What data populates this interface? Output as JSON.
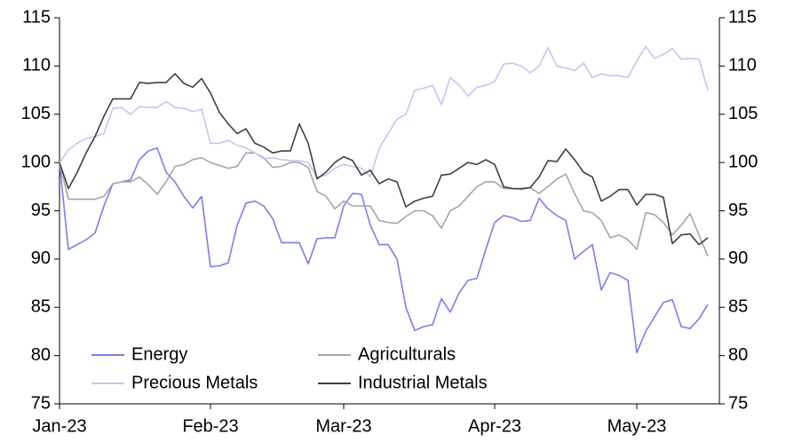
{
  "chart_data": {
    "type": "line",
    "categories": [
      "Jan-23",
      null,
      null,
      null,
      null,
      null,
      null,
      null,
      null,
      null,
      null,
      null,
      null,
      null,
      null,
      null,
      null,
      "Feb-23",
      null,
      null,
      null,
      null,
      null,
      null,
      null,
      null,
      null,
      null,
      null,
      null,
      null,
      null,
      "Mar-23",
      null,
      null,
      null,
      null,
      null,
      null,
      null,
      null,
      null,
      null,
      null,
      null,
      null,
      null,
      null,
      null,
      "Apr-23",
      null,
      null,
      null,
      null,
      null,
      null,
      null,
      null,
      null,
      null,
      null,
      null,
      null,
      null,
      null,
      "May-23",
      null,
      null,
      null,
      null,
      null,
      null,
      null,
      null
    ],
    "series": [
      {
        "name": "Energy",
        "color": "#7b7fe8",
        "values": [
          100,
          91,
          91.5,
          92,
          92.7,
          95.5,
          97.8,
          98,
          98.2,
          100.3,
          101.2,
          101.5,
          99,
          98,
          96.5,
          95.3,
          96.5,
          89.2,
          89.3,
          89.6,
          93.5,
          95.8,
          96,
          95.5,
          94.2,
          91.7,
          91.7,
          91.7,
          89.5,
          92.1,
          92.2,
          92.2,
          95.5,
          96.8,
          96.7,
          93.5,
          91.5,
          91.5,
          90,
          85,
          82.6,
          83,
          83.2,
          85.9,
          84.5,
          86.5,
          87.8,
          88,
          91,
          93.8,
          94.5,
          94.3,
          93.9,
          94,
          96.3,
          95.2,
          94.5,
          94,
          90,
          90.8,
          91.5,
          86.8,
          88.6,
          88.3,
          87.8,
          80.3,
          82.5,
          84,
          85.5,
          85.8,
          83,
          82.8,
          83.8,
          85.3
        ]
      },
      {
        "name": "Agriculturals",
        "color": "#a6a6a6",
        "values": [
          100,
          96.2,
          96.2,
          96.2,
          96.2,
          96.5,
          97.8,
          98,
          98,
          98.5,
          97.7,
          96.7,
          98,
          99.6,
          99.8,
          100.3,
          100.5,
          100,
          99.7,
          99.4,
          99.6,
          101,
          101,
          100.5,
          99.5,
          99.6,
          100,
          100,
          99.5,
          97,
          96.5,
          95.2,
          96,
          95.5,
          95.5,
          95.5,
          94,
          93.8,
          93.7,
          94.4,
          95,
          95,
          94.5,
          93.2,
          95,
          95.5,
          96.5,
          97.5,
          98,
          98,
          97.3,
          97.3,
          97.2,
          97.4,
          96.8,
          97.5,
          98.3,
          98.8,
          96.8,
          95,
          94.8,
          94,
          92.2,
          92.5,
          92,
          91,
          94.8,
          94.6,
          93.8,
          92.5,
          93.5,
          94.7,
          92.5,
          90.3
        ]
      },
      {
        "name": "Precious Metals",
        "color": "#c5c5f2",
        "values": [
          100,
          101.3,
          102,
          102.5,
          102.7,
          103,
          105.6,
          105.7,
          105,
          105.8,
          105.7,
          105.7,
          106.3,
          105.7,
          105.6,
          105.3,
          105.5,
          102,
          102,
          102.3,
          101.8,
          101.5,
          101,
          100.4,
          100.5,
          100.3,
          100.2,
          100.2,
          100,
          98.5,
          98.7,
          99.4,
          99.8,
          99.6,
          99.4,
          98.5,
          101.5,
          103,
          104.5,
          105,
          107.5,
          107.7,
          108,
          106,
          108.8,
          108,
          106.9,
          107.8,
          108,
          108.4,
          110.2,
          110.3,
          110,
          109.3,
          110,
          111.9,
          110,
          109.8,
          109.5,
          110.3,
          108.8,
          109.2,
          109,
          109,
          108.8,
          110.5,
          112,
          110.8,
          111.2,
          111.8,
          110.7,
          110.8,
          110.7,
          107.5
        ]
      },
      {
        "name": "Industrial Metals",
        "color": "#404040",
        "values": [
          100,
          97.3,
          99,
          101,
          102.7,
          104.8,
          106.6,
          106.6,
          106.6,
          108.3,
          108.2,
          108.3,
          108.3,
          109.2,
          108.2,
          107.8,
          108.7,
          107.2,
          105.2,
          104,
          103,
          103.5,
          102,
          101.6,
          101,
          101.2,
          101.2,
          104,
          102,
          98.3,
          99,
          100,
          100.6,
          100.2,
          98.7,
          99.2,
          97.8,
          98.3,
          98,
          95.4,
          96,
          96.3,
          96.5,
          98.7,
          98.8,
          99.4,
          100,
          99.8,
          100.3,
          99.8,
          97.5,
          97.3,
          97.3,
          97.4,
          98.5,
          100.2,
          100.1,
          101.4,
          100.3,
          99,
          98.5,
          96,
          96.5,
          97.2,
          97.2,
          95.6,
          96.7,
          96.7,
          96.4,
          91.6,
          92.5,
          92.6,
          91.5,
          92.2
        ]
      }
    ],
    "ylim": [
      75,
      115
    ],
    "yticks": [
      75,
      80,
      85,
      90,
      95,
      100,
      105,
      110,
      115
    ],
    "y2lim": [
      75,
      115
    ],
    "y2ticks": [
      75,
      80,
      85,
      90,
      95,
      100,
      105,
      110,
      115
    ],
    "grid": false,
    "legend": "lower left"
  }
}
